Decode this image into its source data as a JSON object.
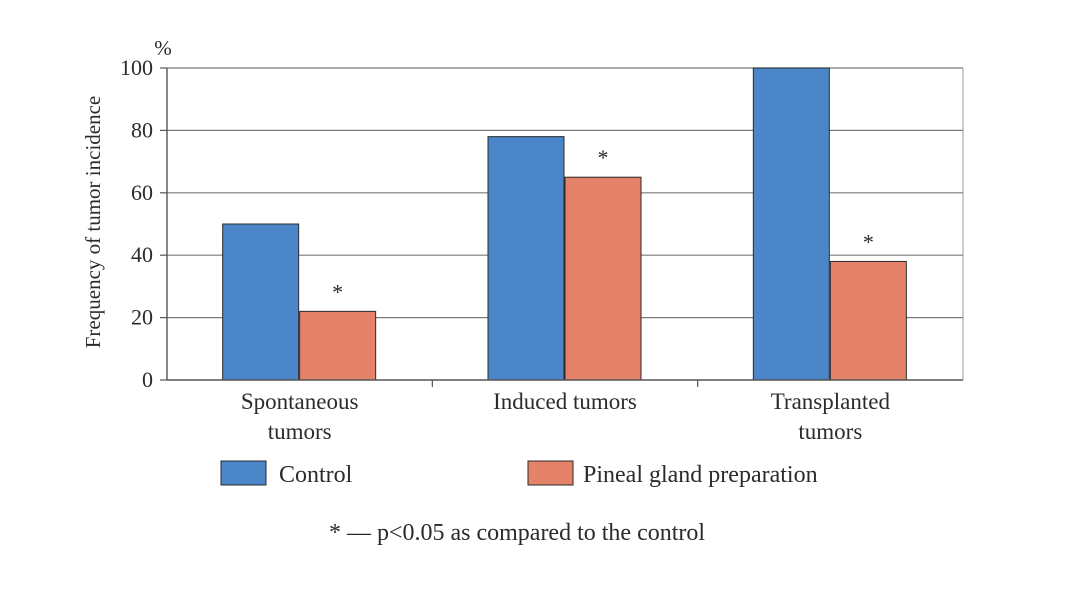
{
  "chart_data": {
    "type": "bar",
    "categories": [
      [
        "Spontaneous",
        "tumors"
      ],
      [
        "Induced tumors"
      ],
      [
        "Transplanted",
        "tumors"
      ]
    ],
    "series": [
      {
        "name": "Control",
        "values": [
          50,
          78,
          100
        ],
        "color": "#4a86c8"
      },
      {
        "name": "Pineal gland preparation",
        "values": [
          22,
          65,
          38
        ],
        "color": "#e5826a"
      }
    ],
    "significance_marker": "*",
    "significant": [
      [
        false,
        true
      ],
      [
        false,
        true
      ],
      [
        false,
        true
      ]
    ],
    "ylabel": "Frequency of tumor incidence",
    "yunit": "%",
    "ylim": [
      0,
      100
    ],
    "yticks": [
      0,
      20,
      40,
      60,
      80,
      100
    ],
    "grid": true,
    "legend_position": "bottom",
    "footnote": "* — p<0.05 as compared to the control"
  }
}
